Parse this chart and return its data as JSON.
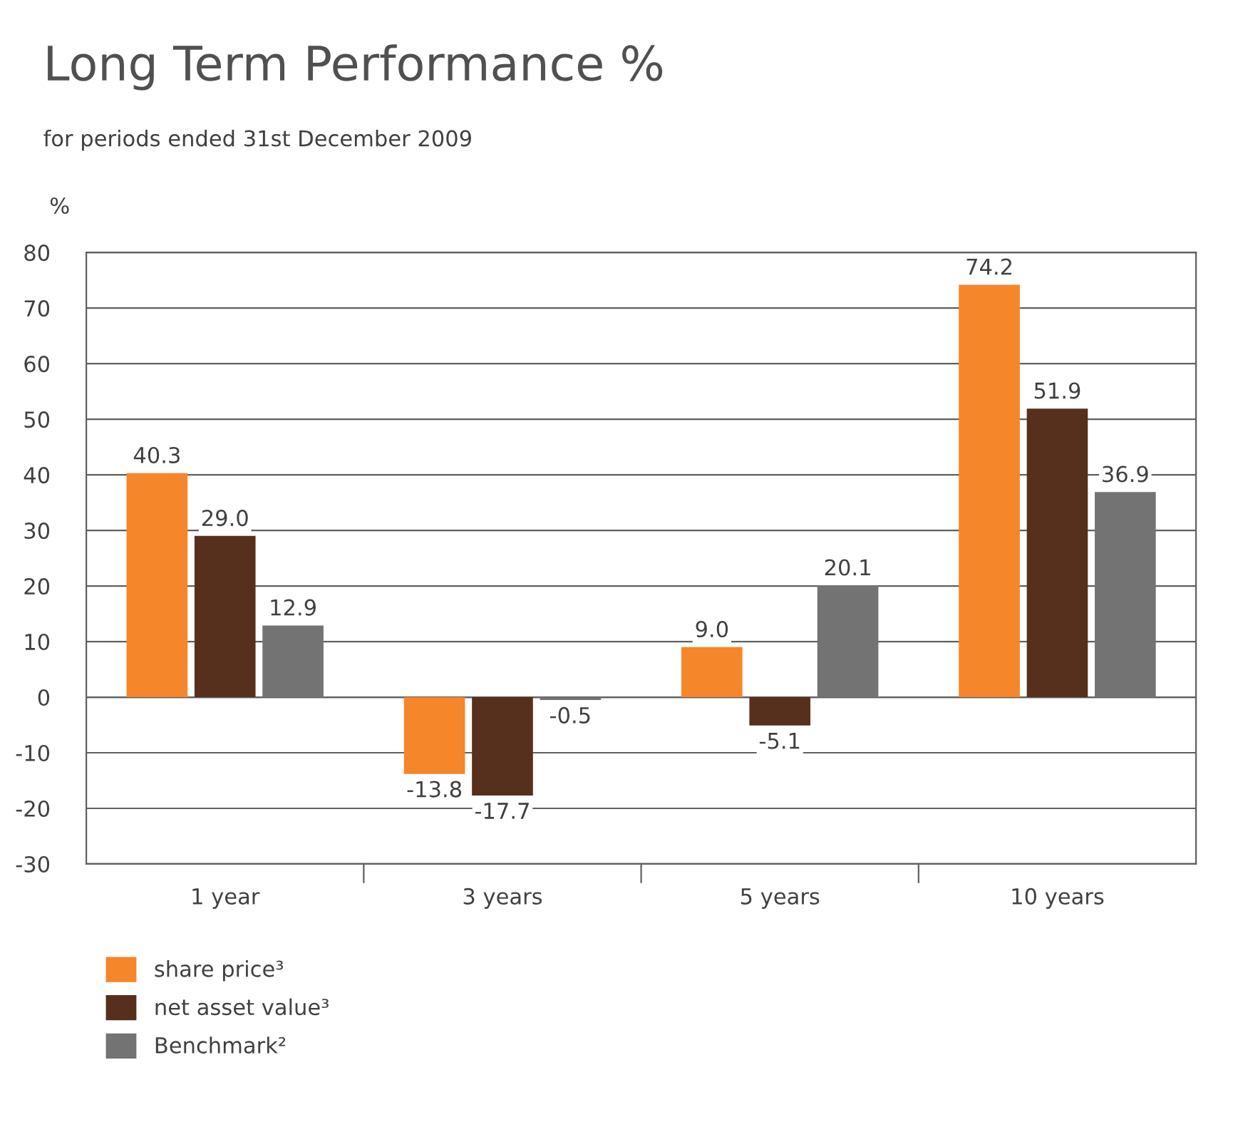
{
  "chart_data": {
    "type": "bar",
    "title": "Long Term Performance %",
    "subtitle": "for periods ended 31st December 2009",
    "ylabel": "%",
    "categories": [
      "1 year",
      "3 years",
      "5 years",
      "10 years"
    ],
    "series": [
      {
        "name": "share price³",
        "color": "#f5862a",
        "values": [
          40.3,
          -13.8,
          9.0,
          74.2
        ],
        "value_labels": [
          "40.3",
          "-13.8",
          "9.0",
          "74.2"
        ]
      },
      {
        "name": "net asset value³",
        "color": "#56301c",
        "values": [
          29.0,
          -17.7,
          -5.1,
          51.9
        ],
        "value_labels": [
          "29.0",
          "-17.7",
          "-5.1",
          "51.9"
        ]
      },
      {
        "name": "Benchmark²",
        "color": "#737373",
        "values": [
          12.9,
          -0.5,
          20.1,
          36.9
        ],
        "value_labels": [
          "12.9",
          "-0.5",
          "20.1",
          "36.9"
        ]
      }
    ],
    "ylim": [
      -30,
      80
    ],
    "yticks": [
      -30,
      -20,
      -10,
      0,
      10,
      20,
      30,
      40,
      50,
      60,
      70,
      80
    ],
    "grid": "y",
    "legend": "bottom left"
  }
}
